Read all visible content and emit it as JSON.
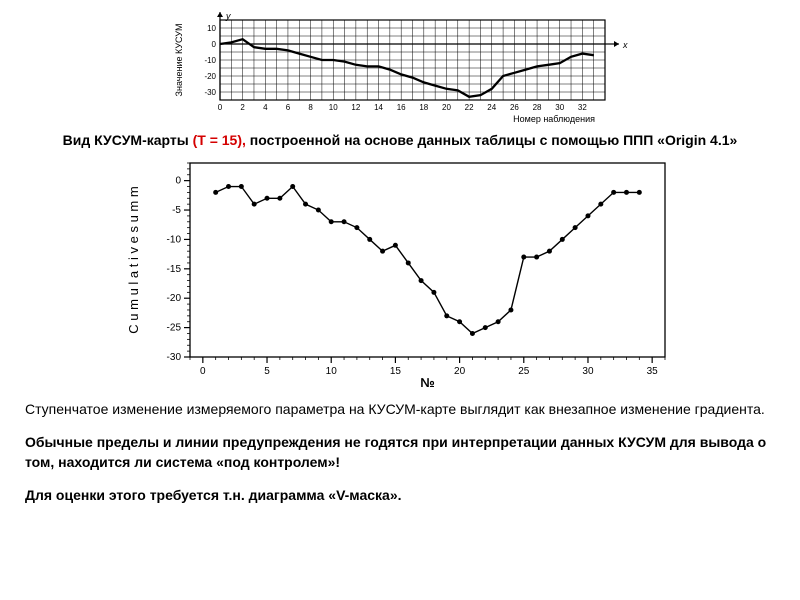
{
  "chart1": {
    "type": "line",
    "ylabel_line1": "Значение КУСУМ",
    "ylabel_line2": "",
    "y_axis_label_top": "y",
    "xlabel": "Номер наблюдения",
    "x_axis_label_right": "x",
    "xlim": [
      0,
      34
    ],
    "ylim": [
      -35,
      15
    ],
    "xticks": [
      0,
      2,
      4,
      6,
      8,
      10,
      12,
      14,
      16,
      18,
      20,
      22,
      24,
      26,
      28,
      30,
      32
    ],
    "yticks": [
      -30,
      -20,
      -10,
      0,
      10
    ],
    "grid_color": "#000000",
    "line_color": "#000000",
    "background": "#ffffff",
    "line_width": 1.3,
    "tick_fontsize": 8,
    "label_fontsize": 9,
    "data": [
      {
        "x": 0,
        "y": 0
      },
      {
        "x": 1,
        "y": 1
      },
      {
        "x": 2,
        "y": 3
      },
      {
        "x": 3,
        "y": -2
      },
      {
        "x": 4,
        "y": -3
      },
      {
        "x": 5,
        "y": -3
      },
      {
        "x": 6,
        "y": -4
      },
      {
        "x": 7,
        "y": -6
      },
      {
        "x": 8,
        "y": -8
      },
      {
        "x": 9,
        "y": -10
      },
      {
        "x": 10,
        "y": -10
      },
      {
        "x": 11,
        "y": -11
      },
      {
        "x": 12,
        "y": -13
      },
      {
        "x": 13,
        "y": -14
      },
      {
        "x": 14,
        "y": -14
      },
      {
        "x": 15,
        "y": -16
      },
      {
        "x": 16,
        "y": -19
      },
      {
        "x": 17,
        "y": -21
      },
      {
        "x": 18,
        "y": -24
      },
      {
        "x": 19,
        "y": -26
      },
      {
        "x": 20,
        "y": -28
      },
      {
        "x": 21,
        "y": -29
      },
      {
        "x": 22,
        "y": -33
      },
      {
        "x": 23,
        "y": -32
      },
      {
        "x": 24,
        "y": -28
      },
      {
        "x": 25,
        "y": -20
      },
      {
        "x": 26,
        "y": -18
      },
      {
        "x": 27,
        "y": -16
      },
      {
        "x": 28,
        "y": -14
      },
      {
        "x": 29,
        "y": -13
      },
      {
        "x": 30,
        "y": -12
      },
      {
        "x": 31,
        "y": -8
      },
      {
        "x": 32,
        "y": -6
      },
      {
        "x": 33,
        "y": -7
      }
    ]
  },
  "caption": {
    "prefix": "Вид КУСУМ-карты ",
    "red": "(T = 15),",
    "suffix": " построенной  на основе данных таблицы с помощью ППП «Origin 4.1»"
  },
  "chart2": {
    "type": "line",
    "ylabel": "C u m u l a t i v e  s u m m",
    "xlabel": "№",
    "xlim": [
      -1,
      36
    ],
    "ylim": [
      -30,
      3
    ],
    "xticks": [
      0,
      5,
      10,
      15,
      20,
      25,
      30,
      35
    ],
    "yticks": [
      -30,
      -25,
      -20,
      -15,
      -10,
      -5,
      0
    ],
    "xtick_minor_step": 1,
    "ytick_minor_step": 1,
    "line_color": "#000000",
    "marker_fill": "#000000",
    "marker_radius": 2.5,
    "line_width": 1.4,
    "tick_fontsize": 10,
    "label_fontsize": 13,
    "axis_color": "#000000",
    "background": "#ffffff",
    "data": [
      {
        "x": 1,
        "y": -2
      },
      {
        "x": 2,
        "y": -1
      },
      {
        "x": 3,
        "y": -1
      },
      {
        "x": 4,
        "y": -4
      },
      {
        "x": 5,
        "y": -3
      },
      {
        "x": 6,
        "y": -3
      },
      {
        "x": 7,
        "y": -1
      },
      {
        "x": 8,
        "y": -4
      },
      {
        "x": 9,
        "y": -5
      },
      {
        "x": 10,
        "y": -7
      },
      {
        "x": 11,
        "y": -7
      },
      {
        "x": 12,
        "y": -8
      },
      {
        "x": 13,
        "y": -10
      },
      {
        "x": 14,
        "y": -12
      },
      {
        "x": 15,
        "y": -11
      },
      {
        "x": 16,
        "y": -14
      },
      {
        "x": 17,
        "y": -17
      },
      {
        "x": 18,
        "y": -19
      },
      {
        "x": 19,
        "y": -23
      },
      {
        "x": 20,
        "y": -24
      },
      {
        "x": 21,
        "y": -26
      },
      {
        "x": 22,
        "y": -25
      },
      {
        "x": 23,
        "y": -24
      },
      {
        "x": 24,
        "y": -22
      },
      {
        "x": 25,
        "y": -13
      },
      {
        "x": 26,
        "y": -13
      },
      {
        "x": 27,
        "y": -12
      },
      {
        "x": 28,
        "y": -10
      },
      {
        "x": 29,
        "y": -8
      },
      {
        "x": 30,
        "y": -6
      },
      {
        "x": 31,
        "y": -4
      },
      {
        "x": 32,
        "y": -2
      },
      {
        "x": 33,
        "y": -2
      },
      {
        "x": 34,
        "y": -2
      }
    ]
  },
  "paragraphs": {
    "p1": "Ступенчатое изменение измеряемого параметра на КУСУМ-карте выглядит как внезапное изменение градиента.",
    "p2": "Обычные пределы и линии предупреждения не годятся при интерпретации данных КУСУМ для вывода о том, находится ли система «под контролем»!",
    "p3": "Для оценки этого требуется т.н. диаграмма «V-маска»."
  }
}
